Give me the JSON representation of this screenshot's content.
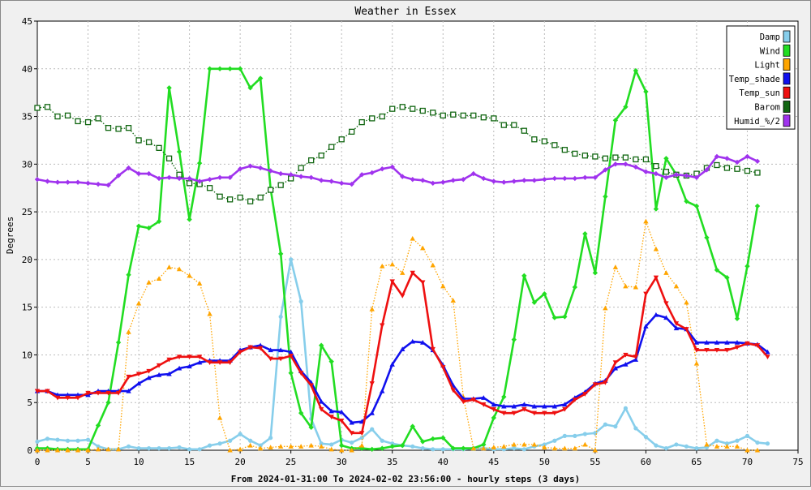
{
  "chart_data": {
    "type": "line",
    "title": "Weather in Essex",
    "xlabel": "From 2024-01-31:00 To 2024-02-02 23:56:00 - hourly steps (3 days)",
    "ylabel": "Degrees",
    "xlim": [
      0,
      75
    ],
    "ylim": [
      0,
      45
    ],
    "x_ticks": [
      0,
      5,
      10,
      15,
      20,
      25,
      30,
      35,
      40,
      45,
      50,
      55,
      60,
      65,
      70,
      75
    ],
    "y_ticks": [
      0,
      5,
      10,
      15,
      20,
      25,
      30,
      35,
      40,
      45
    ],
    "grid": true,
    "legend_position": "top-right",
    "series": [
      {
        "name": "Damp",
        "color": "#87ceeb",
        "style": "solid",
        "marker": "circle",
        "values": [
          0.9,
          1.2,
          1.1,
          1.0,
          1.0,
          1.1,
          0.4,
          0.1,
          0.1,
          0.4,
          0.2,
          0.2,
          0.2,
          0.2,
          0.3,
          0.1,
          0.1,
          0.5,
          0.7,
          1.0,
          1.7,
          1.0,
          0.5,
          1.3,
          14.0,
          20.0,
          15.6,
          3.3,
          0.7,
          0.6,
          1.1,
          0.8,
          1.3,
          2.2,
          1.0,
          0.7,
          0.5,
          0.4,
          0.2,
          0.1,
          0.1,
          0.1,
          0.1,
          0.2,
          0.2,
          0.1,
          0.1,
          0.2,
          0.1,
          0.4,
          0.6,
          1.0,
          1.5,
          1.5,
          1.7,
          1.8,
          2.7,
          2.5,
          4.4,
          2.3,
          1.4,
          0.5,
          0.2,
          0.6,
          0.4,
          0.2,
          0.3,
          1.0,
          0.7,
          1.0,
          1.5,
          0.8,
          0.7
        ]
      },
      {
        "name": "Wind",
        "color": "#22dd22",
        "style": "solid",
        "marker": "diamond",
        "values": [
          0.2,
          0.2,
          0.1,
          0.1,
          0.1,
          0.1,
          2.6,
          5.0,
          11.3,
          18.4,
          23.5,
          23.3,
          24.0,
          38.0,
          31.3,
          24.2,
          30.1,
          40.0,
          40.0,
          40.0,
          40.0,
          38.0,
          39.0,
          27.4,
          20.6,
          8.1,
          3.9,
          2.4,
          11.0,
          9.3,
          0.5,
          0.2,
          0.2,
          0.1,
          0.2,
          0.4,
          0.5,
          2.5,
          0.9,
          1.2,
          1.3,
          0.2,
          0.2,
          0.2,
          0.6,
          3.4,
          5.6,
          11.6,
          18.3,
          15.5,
          16.4,
          13.9,
          14.0,
          17.1,
          22.7,
          18.6,
          26.6,
          34.6,
          36.0,
          39.8,
          37.6,
          25.3,
          30.6,
          28.9,
          26.1,
          25.6,
          22.3,
          18.9,
          18.1,
          13.8,
          19.3,
          25.6
        ]
      },
      {
        "name": "Light",
        "color": "#ffa500",
        "style": "dotted",
        "marker": "triangle-up",
        "values": [
          0.0,
          0.0,
          0.0,
          0.0,
          0.0,
          0.0,
          0.1,
          0.1,
          0.1,
          12.4,
          15.4,
          17.6,
          18.0,
          19.2,
          19.0,
          18.3,
          17.5,
          14.3,
          3.4,
          0.0,
          0.1,
          0.5,
          0.2,
          0.3,
          0.4,
          0.4,
          0.4,
          0.5,
          0.4,
          0.1,
          0.0,
          0.0,
          0.5,
          14.8,
          19.3,
          19.5,
          18.6,
          22.2,
          21.2,
          19.4,
          17.2,
          15.7,
          5.6,
          0.2,
          0.2,
          0.3,
          0.4,
          0.6,
          0.6,
          0.6,
          0.3,
          0.2,
          0.2,
          0.2,
          0.6,
          0.0,
          14.9,
          19.2,
          17.2,
          17.1,
          24.0,
          21.1,
          18.6,
          17.2,
          15.5,
          9.1,
          0.6,
          0.4,
          0.4,
          0.4,
          0.0,
          0.0
        ]
      },
      {
        "name": "Temp_shade",
        "color": "#1010ee",
        "style": "solid",
        "marker": "triangle-up",
        "values": [
          6.2,
          6.2,
          5.8,
          5.8,
          5.8,
          5.8,
          6.2,
          6.2,
          6.2,
          6.2,
          7.0,
          7.6,
          7.9,
          8.0,
          8.6,
          8.8,
          9.2,
          9.4,
          9.4,
          9.4,
          10.5,
          10.8,
          11.0,
          10.5,
          10.5,
          10.3,
          8.3,
          7.1,
          5.1,
          4.1,
          4.0,
          2.9,
          3.0,
          3.9,
          6.2,
          9.0,
          10.6,
          11.4,
          11.3,
          10.5,
          8.9,
          6.8,
          5.4,
          5.4,
          5.5,
          4.8,
          4.6,
          4.6,
          4.8,
          4.6,
          4.6,
          4.6,
          4.8,
          5.5,
          6.1,
          7.0,
          7.3,
          8.6,
          9.0,
          9.5,
          13.0,
          14.2,
          13.9,
          12.8,
          12.7,
          11.3,
          11.3,
          11.3,
          11.3,
          11.3,
          11.2,
          11.1,
          10.3
        ]
      },
      {
        "name": "Temp_sun",
        "color": "#ee1010",
        "style": "solid",
        "marker": "triangle-down",
        "values": [
          6.2,
          6.2,
          5.5,
          5.5,
          5.5,
          6.0,
          6.0,
          6.0,
          6.0,
          7.7,
          8.0,
          8.3,
          8.9,
          9.5,
          9.8,
          9.8,
          9.8,
          9.2,
          9.2,
          9.2,
          10.3,
          10.8,
          10.7,
          9.6,
          9.6,
          9.9,
          8.1,
          6.8,
          4.3,
          3.5,
          3.1,
          1.8,
          1.8,
          7.0,
          13.1,
          17.7,
          16.2,
          18.6,
          17.6,
          10.6,
          8.7,
          6.3,
          5.1,
          5.3,
          4.8,
          4.3,
          3.9,
          3.9,
          4.3,
          3.9,
          3.9,
          3.9,
          4.3,
          5.3,
          5.9,
          6.9,
          7.1,
          9.2,
          10.0,
          9.8,
          16.4,
          18.1,
          15.4,
          13.3,
          12.7,
          10.5,
          10.5,
          10.5,
          10.5,
          10.8,
          11.2,
          11.0,
          9.8
        ]
      },
      {
        "name": "Barom",
        "color": "#116611",
        "style": "dotted",
        "marker": "square",
        "values": [
          35.9,
          36.0,
          35.0,
          35.1,
          34.5,
          34.4,
          34.8,
          33.8,
          33.7,
          33.8,
          32.5,
          32.3,
          31.7,
          30.6,
          28.9,
          28.0,
          27.9,
          27.5,
          26.6,
          26.3,
          26.5,
          26.1,
          26.5,
          27.3,
          27.8,
          28.5,
          29.6,
          30.4,
          30.9,
          31.8,
          32.6,
          33.4,
          34.4,
          34.8,
          35.0,
          35.8,
          36.0,
          35.8,
          35.6,
          35.4,
          35.1,
          35.2,
          35.1,
          35.1,
          34.9,
          34.8,
          34.1,
          34.1,
          33.5,
          32.6,
          32.4,
          32.0,
          31.5,
          31.1,
          30.9,
          30.8,
          30.6,
          30.7,
          30.7,
          30.5,
          30.5,
          29.8,
          29.2,
          28.9,
          28.8,
          29.0,
          29.6,
          29.9,
          29.6,
          29.5,
          29.3,
          29.1
        ]
      },
      {
        "name": "Humid_%/2",
        "color": "#a033ee",
        "style": "solid",
        "marker": "diamond",
        "values": [
          28.4,
          28.2,
          28.1,
          28.1,
          28.1,
          28.0,
          27.9,
          27.8,
          28.8,
          29.6,
          29.0,
          29.0,
          28.5,
          28.6,
          28.5,
          28.5,
          28.2,
          28.4,
          28.6,
          28.6,
          29.5,
          29.8,
          29.6,
          29.3,
          29.0,
          28.9,
          28.7,
          28.6,
          28.3,
          28.2,
          28.0,
          27.9,
          28.9,
          29.1,
          29.5,
          29.7,
          28.7,
          28.4,
          28.3,
          28.0,
          28.1,
          28.3,
          28.4,
          29.0,
          28.5,
          28.2,
          28.1,
          28.2,
          28.3,
          28.3,
          28.4,
          28.5,
          28.5,
          28.5,
          28.6,
          28.6,
          29.4,
          30.0,
          30.0,
          29.7,
          29.2,
          29.0,
          28.6,
          28.9,
          28.8,
          28.6,
          29.4,
          30.8,
          30.6,
          30.2,
          30.8,
          30.3
        ]
      }
    ]
  }
}
